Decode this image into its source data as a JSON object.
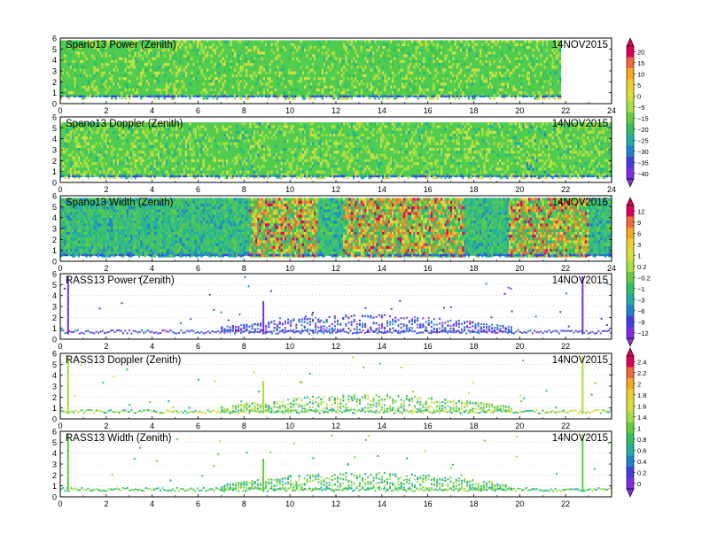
{
  "chart_data": [
    {
      "type": "heatmap",
      "title": "Spano13 Power (Zenith)",
      "date": "14NOV2015",
      "x_ticks": [
        "0",
        "2",
        "4",
        "6",
        "8",
        "10",
        "12",
        "14",
        "16",
        "18",
        "20",
        "22",
        "24"
      ],
      "y_ticks": [
        "0",
        "1",
        "2",
        "3",
        "4",
        "5",
        "6"
      ],
      "xlim": [
        0,
        24
      ],
      "ylim": [
        0,
        6
      ],
      "data_extent": {
        "x": [
          0,
          21.8
        ],
        "y": [
          0.6,
          5.8
        ]
      },
      "colorbar_group": "cb1"
    },
    {
      "type": "heatmap",
      "title": "Spano13 Doppler (Zenith)",
      "date": "14NOV2015",
      "x_ticks": [
        "0",
        "2",
        "4",
        "6",
        "8",
        "10",
        "12",
        "14",
        "16",
        "18",
        "20",
        "22",
        "24"
      ],
      "y_ticks": [
        "0",
        "1",
        "2",
        "3",
        "4",
        "5",
        "6"
      ],
      "xlim": [
        0,
        24
      ],
      "ylim": [
        0,
        6
      ],
      "data_extent": {
        "x": [
          0,
          24
        ],
        "y": [
          0.5,
          5.5
        ]
      },
      "colorbar_group": "cb1"
    },
    {
      "type": "heatmap",
      "title": "Spano13 Width (Zenith)",
      "date": "14NOV2015",
      "x_ticks": [
        "0",
        "2",
        "4",
        "6",
        "8",
        "10",
        "12",
        "14",
        "16",
        "18",
        "20",
        "22",
        "24"
      ],
      "y_ticks": [
        "0",
        "1",
        "2",
        "3",
        "4",
        "5",
        "6"
      ],
      "xlim": [
        0,
        24
      ],
      "ylim": [
        0,
        6
      ],
      "data_extent": {
        "x": [
          0,
          24
        ],
        "y": [
          0.5,
          5.8
        ]
      },
      "colorbar_group": "cb2"
    },
    {
      "type": "scatter",
      "title": "RASS13 Power (Zenith)",
      "date": "14NOV2015",
      "x_ticks": [
        "0",
        "2",
        "4",
        "6",
        "8",
        "10",
        "12",
        "14",
        "16",
        "18",
        "20",
        "22"
      ],
      "y_ticks": [
        "0",
        "1",
        "2",
        "3",
        "4",
        "5",
        "6"
      ],
      "xlim": [
        0,
        24
      ],
      "ylim": [
        0,
        6
      ],
      "colorbar_group": "cb2"
    },
    {
      "type": "scatter",
      "title": "RASS13 Doppler (Zenith)",
      "date": "14NOV2015",
      "x_ticks": [
        "0",
        "2",
        "4",
        "6",
        "8",
        "10",
        "12",
        "14",
        "16",
        "18",
        "20",
        "22"
      ],
      "y_ticks": [
        "0",
        "1",
        "2",
        "3",
        "4",
        "5",
        "6"
      ],
      "xlim": [
        0,
        24
      ],
      "ylim": [
        0,
        6
      ],
      "colorbar_group": "cb3"
    },
    {
      "type": "scatter",
      "title": "RASS13 Width (Zenith)",
      "date": "14NOV2015",
      "x_ticks": [
        "0",
        "2",
        "4",
        "6",
        "8",
        "10",
        "12",
        "14",
        "16",
        "18",
        "20",
        "22"
      ],
      "y_ticks": [
        "0",
        "1",
        "2",
        "3",
        "4",
        "5",
        "6"
      ],
      "xlim": [
        0,
        24
      ],
      "ylim": [
        0,
        6
      ],
      "colorbar_group": "cb3"
    }
  ],
  "colorbars": [
    {
      "id": "cb1",
      "labels": [
        "20",
        "15",
        "10",
        "5",
        "0",
        "−5",
        "−15",
        "−20",
        "−25",
        "−30",
        "−35",
        "−40"
      ],
      "colors": [
        "#e0005a",
        "#f06a3c",
        "#f5a623",
        "#f0d030",
        "#d8e040",
        "#a8e040",
        "#60d040",
        "#30c060",
        "#20b0a0",
        "#2080d0",
        "#4040e0",
        "#8030e0"
      ]
    },
    {
      "id": "cb2",
      "labels": [
        "12",
        "9",
        "6",
        "3",
        "1",
        "0.2",
        "−0.2",
        "−1",
        "−3",
        "−6",
        "−9",
        "−12"
      ],
      "colors": [
        "#e0005a",
        "#f06a3c",
        "#f5a623",
        "#f0d030",
        "#d8e040",
        "#a8e040",
        "#60d040",
        "#30c060",
        "#20b0a0",
        "#2080d0",
        "#4040e0",
        "#8030e0"
      ]
    },
    {
      "id": "cb3",
      "labels": [
        "2.4",
        "2.2",
        "2",
        "1.8",
        "1.6",
        "1.4",
        "1",
        "0.8",
        "0.6",
        "0.4",
        "0.2",
        "0"
      ],
      "colors": [
        "#e0005a",
        "#f06a3c",
        "#f5a623",
        "#f0d030",
        "#d8e040",
        "#a8e040",
        "#60d040",
        "#30c060",
        "#20b0a0",
        "#2080d0",
        "#4040e0",
        "#8030e0"
      ]
    }
  ]
}
